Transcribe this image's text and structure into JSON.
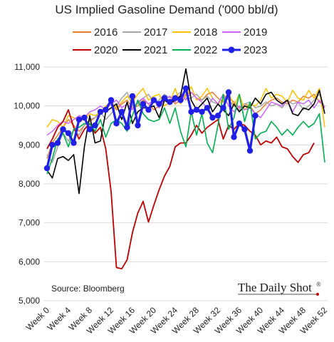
{
  "chart_data": {
    "type": "line",
    "title": "US Implied Gasoline Demand ('000 bbl/d)",
    "xlabel": "",
    "ylabel": "",
    "ylim": [
      5000,
      11000
    ],
    "y_ticks": [
      "5,000",
      "6,000",
      "7,000",
      "8,000",
      "9,000",
      "10,000",
      "11,000"
    ],
    "x_ticks": [
      "Week 0",
      "Week 4",
      "Week 8",
      "Week 12",
      "Week 16",
      "Week 20",
      "Week 24",
      "Week 28",
      "Week 32",
      "Week 36",
      "Week 40",
      "Week 44",
      "Week 48",
      "Week 52"
    ],
    "grid": "horizontal",
    "legend_placement": "top",
    "series": [
      {
        "name": "2016",
        "color": "#ED7D31",
        "width": 1.5,
        "markers": false,
        "values": [
          8650,
          9050,
          9250,
          9450,
          9650,
          9500,
          9350,
          9500,
          9600,
          9700,
          9800,
          9950,
          10100,
          9900,
          10050,
          10150,
          9950,
          10000,
          10150,
          10050,
          9900,
          10000,
          10150,
          10250,
          10050,
          10150,
          10300,
          10350,
          10200,
          10150,
          10300,
          10350,
          10200,
          10100,
          10200,
          10100,
          9950,
          10050,
          10000,
          9800,
          9900,
          10050,
          10150,
          10200,
          10100,
          10050,
          10150,
          10100,
          10250,
          10200,
          10300,
          10100,
          10000
        ]
      },
      {
        "name": "2017",
        "color": "#A5A5A5",
        "width": 1.5,
        "markers": false,
        "values": [
          8750,
          8550,
          8950,
          9300,
          9100,
          9400,
          9250,
          9500,
          9650,
          9700,
          9850,
          9650,
          9800,
          10000,
          10200,
          10350,
          10000,
          10050,
          10200,
          10300,
          10100,
          10150,
          10300,
          10200,
          10250,
          10350,
          10200,
          10200,
          10300,
          10150,
          10250,
          10100,
          10050,
          10300,
          10150,
          10000,
          9900,
          10050,
          10100,
          9950,
          10000,
          10100,
          10000,
          10050,
          9950,
          10150,
          10050,
          10100,
          9900,
          10000,
          10150,
          10300,
          9950
        ]
      },
      {
        "name": "2018",
        "color": "#FFC000",
        "width": 1.5,
        "markers": false,
        "values": [
          9450,
          9650,
          9600,
          9450,
          9750,
          9700,
          9600,
          9650,
          9800,
          9750,
          9850,
          10000,
          10100,
          9950,
          10100,
          10250,
          10100,
          10300,
          10450,
          10150,
          10250,
          10300,
          10000,
          10100,
          10450,
          10050,
          10250,
          10500,
          10150,
          10250,
          10450,
          10200,
          10050,
          10150,
          10350,
          10000,
          10300,
          9900,
          10050,
          10000,
          10150,
          10450,
          10200,
          10300,
          10250,
          10100,
          10400,
          10200,
          10150,
          10400,
          10200,
          10450,
          9450
        ]
      },
      {
        "name": "2019",
        "color": "#CC66FF",
        "width": 1.5,
        "markers": false,
        "values": [
          9250,
          9350,
          9500,
          9600,
          9550,
          9650,
          9750,
          9700,
          9850,
          9900,
          10000,
          9900,
          10050,
          10150,
          9950,
          10050,
          9900,
          10100,
          10200,
          10050,
          10150,
          9950,
          10150,
          10250,
          10100,
          10300,
          10150,
          10350,
          10200,
          10100,
          9950,
          10200,
          10050,
          10300,
          10000,
          9850,
          10000,
          9900,
          9950,
          9800,
          9700,
          9900,
          10100,
          10050,
          10000,
          10150,
          9850,
          10100,
          10050,
          10150,
          9950,
          10150,
          9950
        ]
      },
      {
        "name": "2020",
        "color": "#C00000",
        "width": 1.8,
        "markers": false,
        "values": [
          8900,
          9150,
          9450,
          9600,
          9900,
          9450,
          9150,
          9400,
          9550,
          9300,
          9450,
          8900,
          7800,
          5850,
          5820,
          6050,
          6750,
          7250,
          7550,
          7020,
          7450,
          7850,
          8200,
          8450,
          8950,
          9050,
          9050,
          9250,
          9500,
          9300,
          9450,
          9550,
          9650,
          9150,
          9500,
          9400,
          9550,
          9500,
          9350,
          9250,
          9000,
          9100,
          9050,
          9200,
          8950,
          8900,
          8700,
          8550,
          8750,
          8800,
          9050,
          null,
          null
        ]
      },
      {
        "name": "2021",
        "color": "#000000",
        "width": 1.6,
        "markers": false,
        "values": [
          8350,
          8150,
          8650,
          8700,
          8600,
          8750,
          7750,
          8950,
          9750,
          9050,
          9100,
          9850,
          9950,
          10050,
          9650,
          10100,
          9550,
          9850,
          9950,
          9950,
          10000,
          9700,
          10150,
          10050,
          10150,
          10250,
          10950,
          10150,
          9900,
          10050,
          10200,
          9850,
          10050,
          9900,
          9750,
          10050,
          9850,
          10000,
          9950,
          10200,
          10050,
          10300,
          10350,
          10150,
          10050,
          10150,
          9800,
          9750,
          9950,
          9900,
          10050,
          10400,
          9800
        ]
      },
      {
        "name": "2022",
        "color": "#00B050",
        "width": 1.6,
        "markers": false,
        "values": [
          8250,
          8650,
          9150,
          9300,
          8950,
          9400,
          9450,
          9550,
          9550,
          9350,
          9650,
          9200,
          9550,
          9650,
          9550,
          9350,
          9750,
          10150,
          9800,
          9650,
          9600,
          9650,
          9950,
          9550,
          9950,
          9350,
          8950,
          9850,
          9250,
          9800,
          9050,
          8800,
          9500,
          10300,
          9400,
          9700,
          10300,
          9600,
          10100,
          9150,
          9300,
          9350,
          9600,
          9450,
          9250,
          9400,
          9250,
          9450,
          9600,
          9450,
          9550,
          9800,
          8550
        ]
      },
      {
        "name": "2023",
        "color": "#1F1FE8",
        "width": 3.2,
        "markers": true,
        "values": [
          8400,
          9000,
          9050,
          9400,
          9300,
          9050,
          9650,
          9700,
          9400,
          9500,
          9850,
          9900,
          10150,
          9550,
          9850,
          9450,
          10250,
          9500,
          10050,
          9900,
          10150,
          10050,
          10200,
          10100,
          10200,
          10150,
          10450,
          9850,
          9900,
          9850,
          9950,
          9700,
          9750,
          9950,
          10350,
          9200,
          9550,
          9400,
          8850,
          9750,
          null,
          null,
          null,
          null,
          null,
          null,
          null,
          null,
          null,
          null,
          null,
          null,
          null
        ]
      }
    ]
  },
  "legend": {
    "row1": [
      {
        "label": "2016",
        "color": "#ED7D31"
      },
      {
        "label": "2017",
        "color": "#A5A5A5"
      },
      {
        "label": "2018",
        "color": "#FFC000"
      },
      {
        "label": "2019",
        "color": "#CC66FF"
      }
    ],
    "row2": [
      {
        "label": "2020",
        "color": "#C00000"
      },
      {
        "label": "2021",
        "color": "#000000"
      },
      {
        "label": "2022",
        "color": "#00B050"
      },
      {
        "label": "2023",
        "color": "#1F1FE8",
        "markers": true
      }
    ]
  },
  "source": "Source: Bloomberg",
  "brand": {
    "name": "The Daily Shot",
    "mark": "®"
  },
  "colors": {
    "grid": "#D9D9D9",
    "axis_text": "#222222",
    "brand_dot": "#C00000"
  }
}
